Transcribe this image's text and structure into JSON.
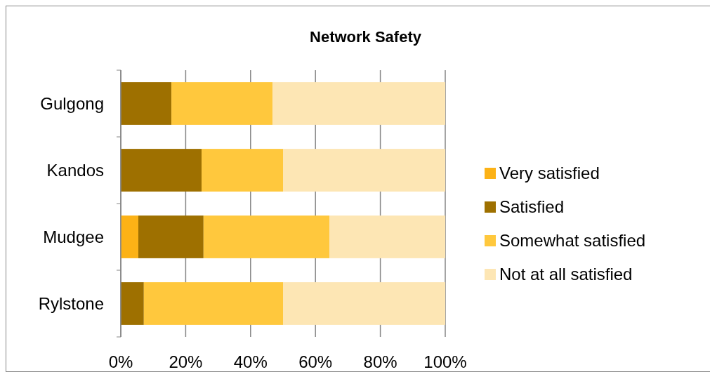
{
  "chart_data": {
    "type": "bar",
    "orientation": "horizontal",
    "stacked": true,
    "title": "Network Safety",
    "categories": [
      "Gulgong",
      "Kandos",
      "Mudgee",
      "Rylstone"
    ],
    "series": [
      {
        "name": "Very satisfied",
        "color": "#fcb216",
        "values": [
          0,
          0,
          5.4,
          0
        ]
      },
      {
        "name": "Satisfied",
        "color": "#9e7000",
        "values": [
          15.6,
          24.9,
          20.1,
          7.1
        ]
      },
      {
        "name": "Somewhat satisfied",
        "color": "#ffc83d",
        "values": [
          31.2,
          25.1,
          38.8,
          42.9
        ]
      },
      {
        "name": "Not at all satisfied",
        "color": "#fde6b4",
        "values": [
          53.2,
          50,
          35.7,
          50
        ]
      }
    ],
    "xlim": [
      0,
      100
    ],
    "xticks": [
      {
        "value": 0,
        "label": "0%"
      },
      {
        "value": 20,
        "label": "20%"
      },
      {
        "value": 40,
        "label": "40%"
      },
      {
        "value": 60,
        "label": "60%"
      },
      {
        "value": 80,
        "label": "80%"
      },
      {
        "value": 100,
        "label": "100%"
      }
    ],
    "grid": "x",
    "legend": "right"
  }
}
